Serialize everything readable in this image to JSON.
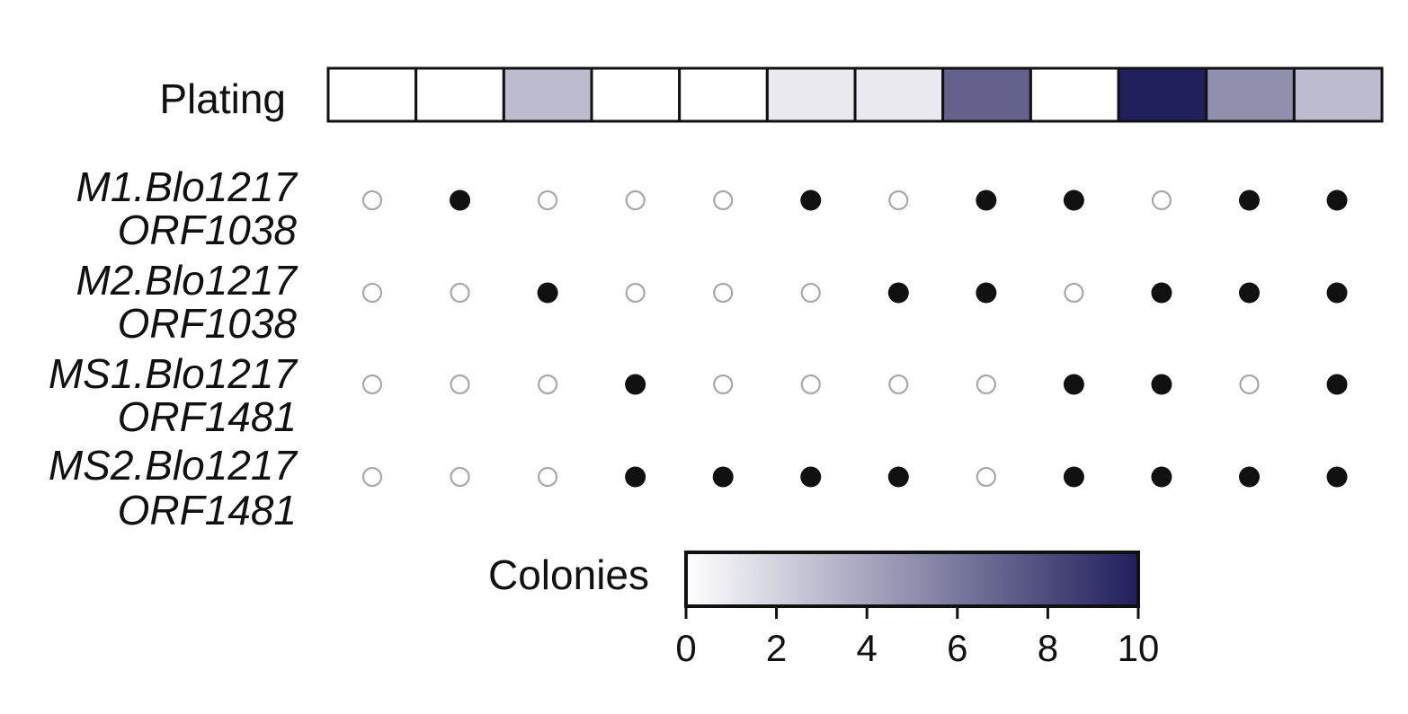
{
  "chart_data": {
    "type": "heatmap",
    "plating": {
      "label": "Plating",
      "values": [
        0,
        0,
        3,
        0,
        0,
        1,
        1,
        7,
        0,
        10,
        5,
        3
      ]
    },
    "rows": [
      {
        "label_line1": "M1.Blo1217",
        "label_line2": "ORF1038",
        "values": [
          0,
          1,
          0,
          0,
          0,
          1,
          0,
          1,
          1,
          0,
          1,
          1
        ]
      },
      {
        "label_line1": "M2.Blo1217",
        "label_line2": "ORF1038",
        "values": [
          0,
          0,
          1,
          0,
          0,
          0,
          1,
          1,
          0,
          1,
          1,
          1
        ]
      },
      {
        "label_line1": "MS1.Blo1217",
        "label_line2": "ORF1481",
        "values": [
          0,
          0,
          0,
          1,
          0,
          0,
          0,
          0,
          1,
          1,
          0,
          1
        ]
      },
      {
        "label_line1": "MS2.Blo1217",
        "label_line2": "ORF1481",
        "values": [
          0,
          0,
          0,
          1,
          1,
          1,
          1,
          0,
          1,
          1,
          1,
          1
        ]
      }
    ],
    "colorbar": {
      "label": "Colonies",
      "min": 0,
      "max": 10,
      "ticks": [
        "0",
        "2",
        "4",
        "6",
        "8",
        "10"
      ],
      "color_low": "#ffffff",
      "color_high": "#211f5c"
    },
    "dot_colors": {
      "filled": "#111111",
      "empty_stroke": "#a8a8a8"
    }
  }
}
